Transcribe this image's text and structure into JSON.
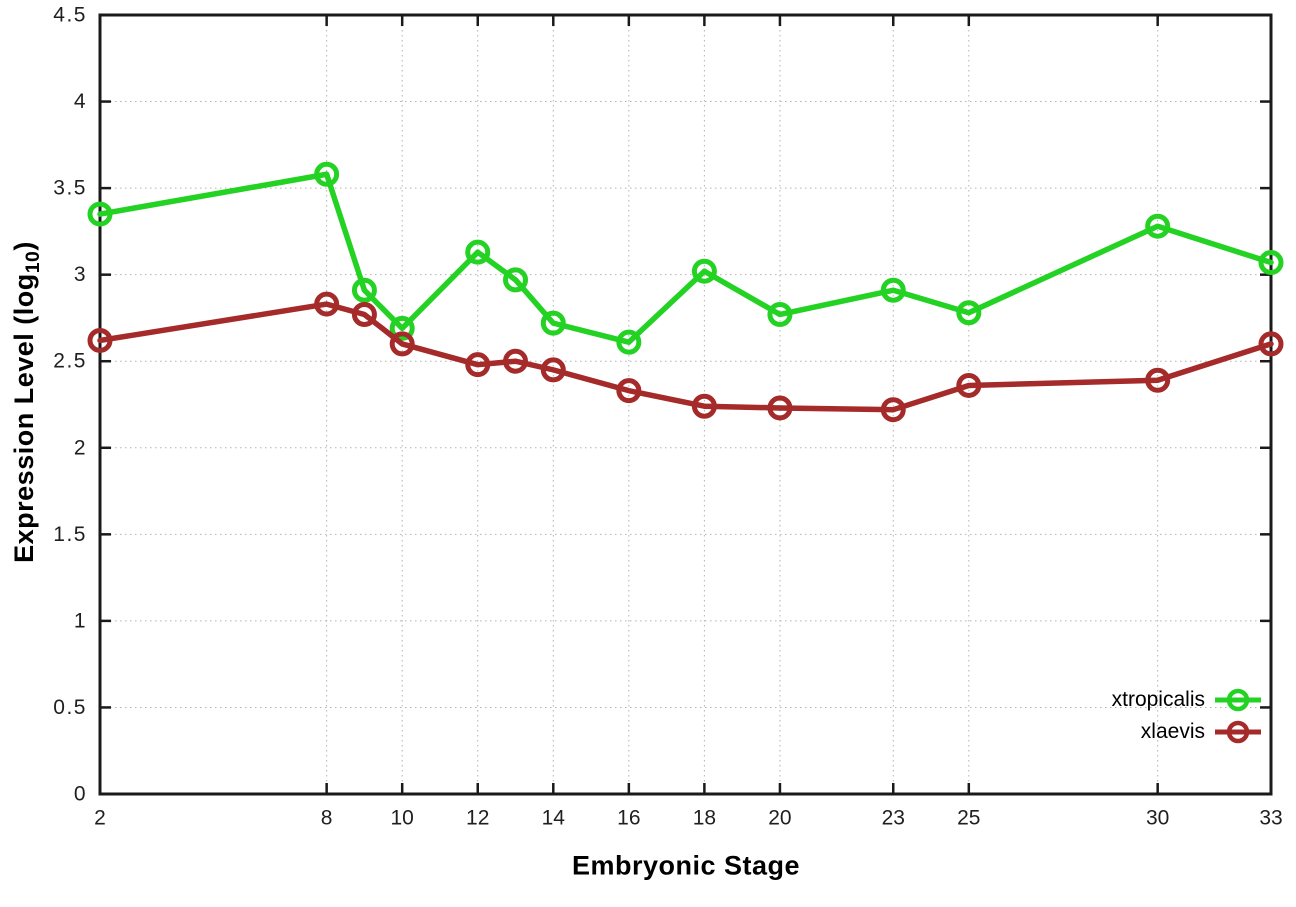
{
  "figure": {
    "background": "#ffffff",
    "axis_color": "#1a1a1a",
    "grid_color": "#b2b2b2",
    "tick_label_color": "#1f1f1f"
  },
  "axes": {
    "x_title": "Embryonic Stage",
    "y_title_prefix": "Expression Level (log",
    "y_title_sub": "10",
    "y_title_suffix": ")"
  },
  "chart_data": {
    "type": "line",
    "title": "",
    "xlabel": "Embryonic Stage",
    "ylabel": "Expression Level (log10)",
    "x": [
      2,
      8,
      9,
      10,
      12,
      13,
      14,
      16,
      18,
      20,
      23,
      25,
      30,
      33
    ],
    "series": [
      {
        "name": "xtropicalis",
        "color": "#23d223",
        "values": [
          3.35,
          3.58,
          2.91,
          2.69,
          3.13,
          2.97,
          2.72,
          2.61,
          3.02,
          2.77,
          2.91,
          2.78,
          3.28,
          3.07
        ]
      },
      {
        "name": "xlaevis",
        "color": "#a52a2a",
        "values": [
          2.62,
          2.83,
          2.77,
          2.6,
          2.48,
          2.5,
          2.45,
          2.33,
          2.24,
          2.23,
          2.22,
          2.36,
          2.39,
          2.6
        ]
      }
    ],
    "xlim": [
      2,
      33
    ],
    "ylim": [
      0,
      4.5
    ],
    "xticks": [
      2,
      8,
      10,
      12,
      14,
      16,
      18,
      20,
      23,
      25,
      30,
      33
    ],
    "yticks": [
      0,
      0.5,
      1,
      1.5,
      2,
      2.5,
      3,
      3.5,
      4,
      4.5
    ],
    "grid": true,
    "legend_position": "bottom-right",
    "marker": "open-circle"
  }
}
